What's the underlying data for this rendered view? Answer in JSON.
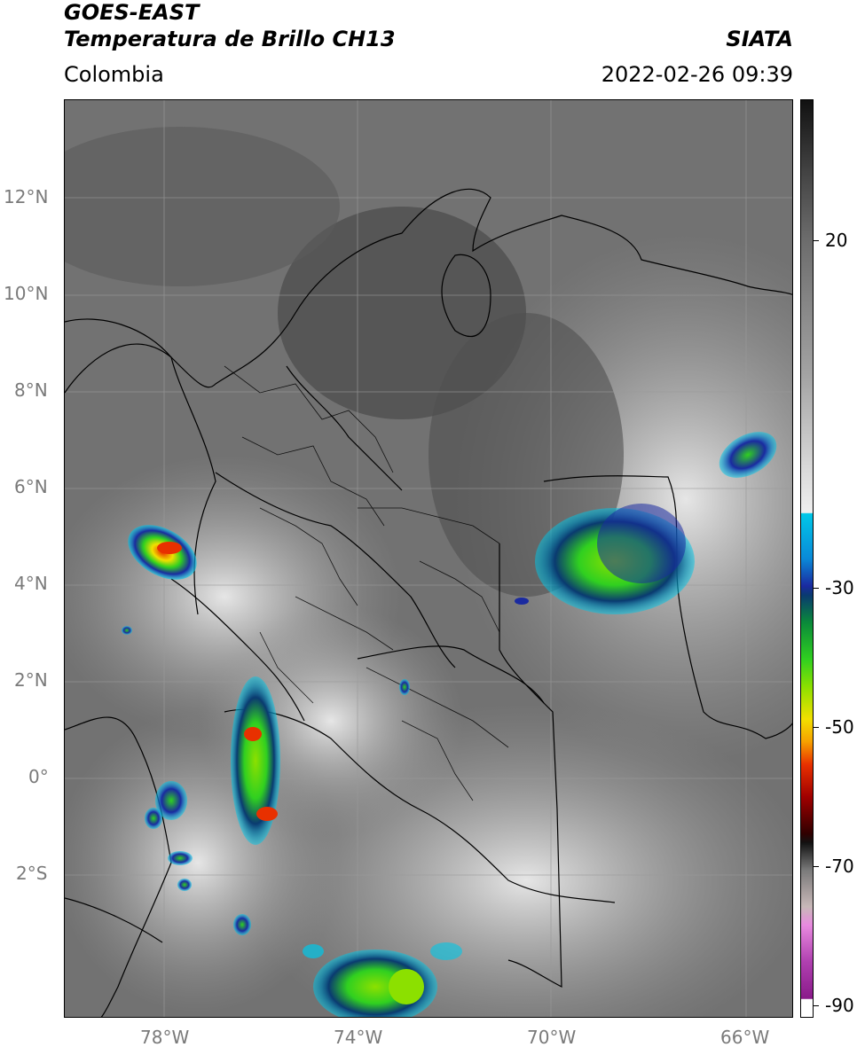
{
  "header": {
    "satellite": "GOES-EAST",
    "product": "Temperatura de Brillo CH13",
    "region": "Colombia",
    "source": "SIATA",
    "datetime": "2022-02-26 09:39"
  },
  "map": {
    "lat_labels": [
      "12°N",
      "10°N",
      "8°N",
      "6°N",
      "4°N",
      "2°N",
      "0°",
      "2°S"
    ],
    "lon_labels": [
      "78°W",
      "74°W",
      "70°W",
      "66°W"
    ],
    "gridlines": true
  },
  "colorbar": {
    "tick_labels": [
      "20",
      "-30",
      "-50",
      "-70",
      "-90"
    ],
    "colors": {
      "warm": "#222222",
      "mid": "#a0a0a0",
      "cold_cyan": "#00c8e8",
      "cold_blue": "#1a2aa0",
      "cold_green": "#30d020",
      "cold_yellow": "#f2e000",
      "cold_red": "#e83000",
      "very_cold": "#121212",
      "magenta": "#b040b0"
    }
  }
}
